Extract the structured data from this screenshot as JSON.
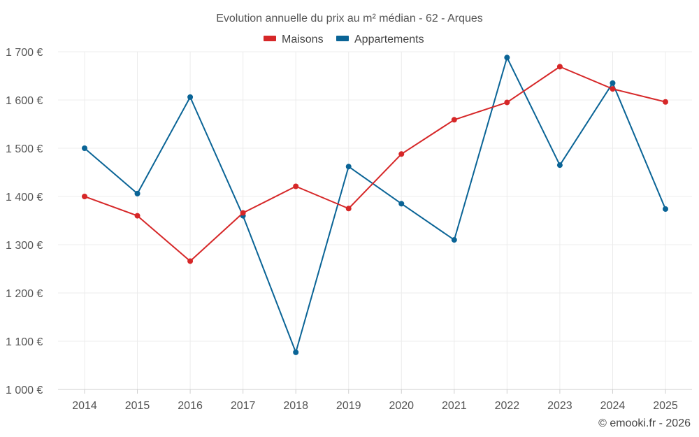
{
  "chart_data": {
    "type": "line",
    "title": "Evolution annuelle du prix au m² médian - 62 - Arques",
    "categories": [
      "2014",
      "2015",
      "2016",
      "2017",
      "2018",
      "2019",
      "2020",
      "2021",
      "2022",
      "2023",
      "2024",
      "2025"
    ],
    "series": [
      {
        "name": "Maisons",
        "color": "#d62728",
        "values": [
          1400,
          1360,
          1266,
          1366,
          1421,
          1375,
          1488,
          1559,
          1595,
          1669,
          1623,
          1596
        ]
      },
      {
        "name": "Appartements",
        "color": "#0a6496",
        "values": [
          1500,
          1406,
          1606,
          1360,
          1077,
          1462,
          1385,
          1310,
          1688,
          1465,
          1635,
          1374
        ]
      }
    ],
    "ylim": [
      1000,
      1700
    ],
    "yticks": [
      1000,
      1100,
      1200,
      1300,
      1400,
      1500,
      1600,
      1700
    ],
    "ytick_labels": [
      "1 000 €",
      "1 100 €",
      "1 200 €",
      "1 300 €",
      "1 400 €",
      "1 500 €",
      "1 600 €",
      "1 700 €"
    ],
    "xlabel": "",
    "ylabel": "",
    "grid": true,
    "legend_position": "top-center"
  },
  "credit": "© emooki.fr - 2026"
}
